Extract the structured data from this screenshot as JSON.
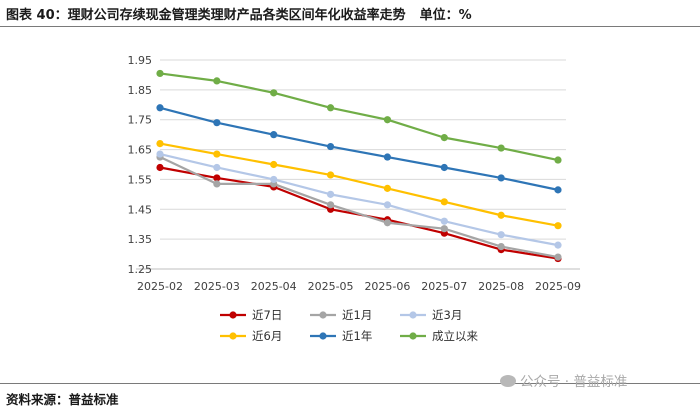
{
  "header": {
    "figure_label": "图表 40：理财公司存续现金管理类理财产品各类区间年化收益率走势",
    "unit_label": "单位：%"
  },
  "footer": {
    "source_label": "资料来源：普益标准",
    "watermark": "公众号 · 普益标准"
  },
  "chart_data": {
    "type": "line",
    "title": "理财公司存续现金管理类理财产品各类区间年化收益率走势",
    "xlabel": "",
    "ylabel": "",
    "ylim": [
      1.25,
      1.95
    ],
    "yticks": [
      "1.95",
      "1.85",
      "1.75",
      "1.65",
      "1.55",
      "1.45",
      "1.35",
      "1.25"
    ],
    "ytick_values": [
      1.95,
      1.85,
      1.75,
      1.65,
      1.55,
      1.45,
      1.35,
      1.25
    ],
    "grid": true,
    "legend_position": "bottom",
    "categories": [
      "2025-02",
      "2025-03",
      "2025-04",
      "2025-05",
      "2025-06",
      "2025-07",
      "2025-08",
      "2025-09"
    ],
    "series": [
      {
        "name": "近7日",
        "color": "#c00000",
        "values": [
          1.59,
          1.555,
          1.525,
          1.45,
          1.415,
          1.37,
          1.315,
          1.285
        ]
      },
      {
        "name": "近1月",
        "color": "#a5a5a5",
        "values": [
          1.625,
          1.535,
          1.535,
          1.465,
          1.405,
          1.385,
          1.325,
          1.29
        ]
      },
      {
        "name": "近3月",
        "color": "#b4c7e7",
        "values": [
          1.635,
          1.59,
          1.55,
          1.5,
          1.465,
          1.41,
          1.365,
          1.33
        ]
      },
      {
        "name": "近6月",
        "color": "#ffc000",
        "values": [
          1.67,
          1.635,
          1.6,
          1.565,
          1.52,
          1.475,
          1.43,
          1.395
        ]
      },
      {
        "name": "近1年",
        "color": "#2e75b6",
        "values": [
          1.79,
          1.74,
          1.7,
          1.66,
          1.625,
          1.59,
          1.555,
          1.515
        ]
      },
      {
        "name": "成立以来",
        "color": "#70ad47",
        "values": [
          1.905,
          1.88,
          1.84,
          1.79,
          1.75,
          1.69,
          1.655,
          1.615
        ]
      }
    ]
  }
}
